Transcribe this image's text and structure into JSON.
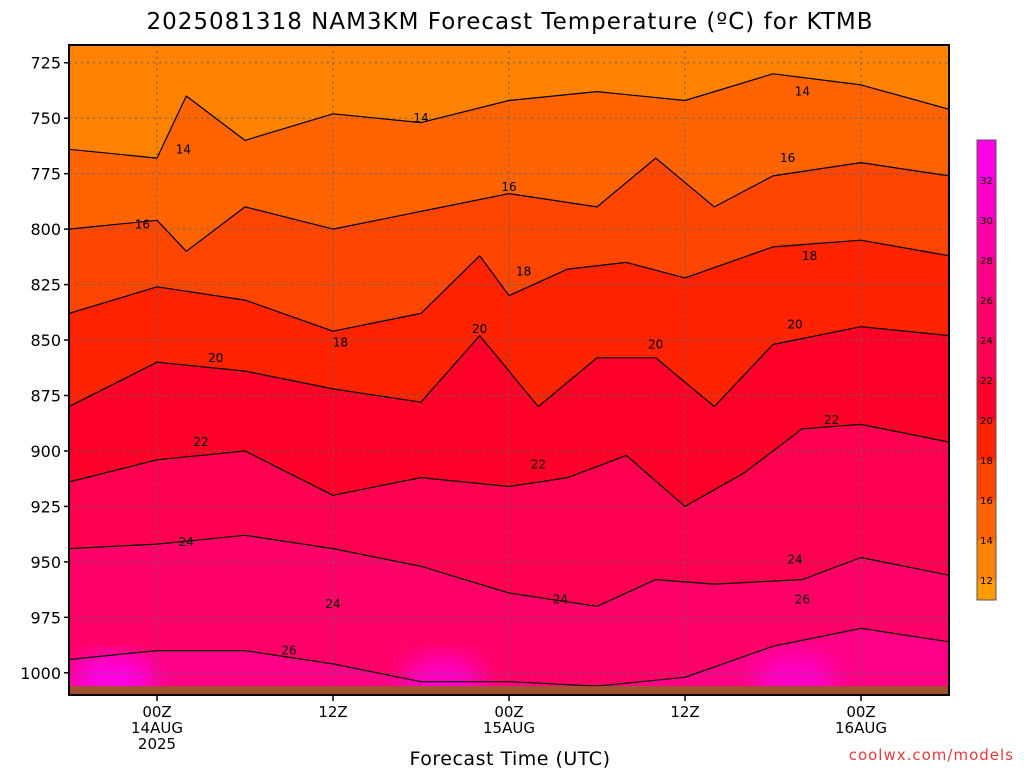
{
  "chart_data": {
    "type": "heatmap",
    "title": "2025081318 NAM3KM Forecast Temperature (ºC) for KTMB",
    "xlabel": "Forecast Time (UTC)",
    "ylabel": "",
    "credit": "coolwx.com/models",
    "x_ticks": [
      {
        "hour": 6,
        "lines": [
          "00Z",
          "14AUG",
          "2025"
        ]
      },
      {
        "hour": 18,
        "lines": [
          "12Z"
        ]
      },
      {
        "hour": 30,
        "lines": [
          "00Z",
          "15AUG"
        ]
      },
      {
        "hour": 42,
        "lines": [
          "12Z"
        ]
      },
      {
        "hour": 54,
        "lines": [
          "00Z",
          "16AUG"
        ]
      }
    ],
    "xlim": [
      0,
      60
    ],
    "y_ticks": [
      725,
      750,
      775,
      800,
      825,
      850,
      875,
      900,
      925,
      950,
      975,
      1000
    ],
    "ylim": [
      717,
      1010
    ],
    "y_scale": "pressure (hPa), inverted",
    "grid": true,
    "colorbar": {
      "ticks": [
        12,
        14,
        16,
        18,
        20,
        22,
        24,
        26,
        28,
        30,
        32
      ],
      "range": [
        11,
        34
      ],
      "colors": {
        "11": "#ff9a00",
        "13": "#ff8200",
        "15": "#ff6400",
        "17": "#ff4600",
        "19": "#ff2300",
        "21": "#ff0028",
        "23": "#ff0050",
        "25": "#ff0069",
        "27": "#ff0087",
        "29": "#ff00a5",
        "31": "#ff00c8",
        "33": "#ff00e6"
      }
    },
    "contour_levels": [
      14,
      16,
      18,
      20,
      22,
      24,
      26
    ],
    "series": [
      {
        "name": "14",
        "values": [
          [
            0,
            764
          ],
          [
            6,
            768
          ],
          [
            8,
            740
          ],
          [
            12,
            760
          ],
          [
            18,
            748
          ],
          [
            24,
            752
          ],
          [
            30,
            742
          ],
          [
            36,
            738
          ],
          [
            42,
            742
          ],
          [
            48,
            730
          ],
          [
            54,
            735
          ],
          [
            60,
            746
          ]
        ]
      },
      {
        "name": "16",
        "values": [
          [
            0,
            800
          ],
          [
            6,
            796
          ],
          [
            8,
            810
          ],
          [
            12,
            790
          ],
          [
            18,
            800
          ],
          [
            24,
            792
          ],
          [
            30,
            784
          ],
          [
            36,
            790
          ],
          [
            40,
            768
          ],
          [
            44,
            790
          ],
          [
            48,
            776
          ],
          [
            54,
            770
          ],
          [
            60,
            776
          ]
        ]
      },
      {
        "name": "18",
        "values": [
          [
            0,
            838
          ],
          [
            6,
            826
          ],
          [
            12,
            832
          ],
          [
            18,
            846
          ],
          [
            24,
            838
          ],
          [
            28,
            812
          ],
          [
            30,
            830
          ],
          [
            34,
            818
          ],
          [
            38,
            815
          ],
          [
            42,
            822
          ],
          [
            48,
            808
          ],
          [
            54,
            805
          ],
          [
            60,
            812
          ]
        ]
      },
      {
        "name": "20",
        "values": [
          [
            0,
            880
          ],
          [
            6,
            860
          ],
          [
            12,
            864
          ],
          [
            18,
            872
          ],
          [
            24,
            878
          ],
          [
            28,
            848
          ],
          [
            32,
            880
          ],
          [
            36,
            858
          ],
          [
            40,
            858
          ],
          [
            44,
            880
          ],
          [
            48,
            852
          ],
          [
            54,
            844
          ],
          [
            60,
            848
          ]
        ]
      },
      {
        "name": "22",
        "values": [
          [
            0,
            914
          ],
          [
            6,
            904
          ],
          [
            12,
            900
          ],
          [
            18,
            920
          ],
          [
            24,
            912
          ],
          [
            30,
            916
          ],
          [
            34,
            912
          ],
          [
            38,
            902
          ],
          [
            42,
            925
          ],
          [
            46,
            910
          ],
          [
            50,
            890
          ],
          [
            54,
            888
          ],
          [
            60,
            896
          ]
        ]
      },
      {
        "name": "24",
        "values": [
          [
            0,
            944
          ],
          [
            6,
            942
          ],
          [
            12,
            938
          ],
          [
            18,
            944
          ],
          [
            24,
            952
          ],
          [
            30,
            964
          ],
          [
            36,
            970
          ],
          [
            40,
            958
          ],
          [
            44,
            960
          ],
          [
            50,
            958
          ],
          [
            54,
            948
          ],
          [
            60,
            956
          ]
        ]
      },
      {
        "name": "26",
        "values": [
          [
            0,
            994
          ],
          [
            6,
            990
          ],
          [
            12,
            990
          ],
          [
            18,
            996
          ],
          [
            24,
            1004
          ],
          [
            30,
            1004
          ],
          [
            36,
            1006
          ],
          [
            42,
            1002
          ],
          [
            48,
            988
          ],
          [
            54,
            980
          ],
          [
            60,
            986
          ]
        ]
      }
    ],
    "contour_labels": [
      {
        "text": "14",
        "hour": 7.8,
        "p": 764
      },
      {
        "text": "14",
        "hour": 24,
        "p": 750
      },
      {
        "text": "14",
        "hour": 50,
        "p": 738
      },
      {
        "text": "16",
        "hour": 5,
        "p": 798
      },
      {
        "text": "16",
        "hour": 30,
        "p": 781
      },
      {
        "text": "16",
        "hour": 49,
        "p": 768
      },
      {
        "text": "18",
        "hour": 18.5,
        "p": 851
      },
      {
        "text": "18",
        "hour": 31,
        "p": 819
      },
      {
        "text": "18",
        "hour": 50.5,
        "p": 812
      },
      {
        "text": "20",
        "hour": 10,
        "p": 858
      },
      {
        "text": "20",
        "hour": 28,
        "p": 845
      },
      {
        "text": "20",
        "hour": 40,
        "p": 852
      },
      {
        "text": "20",
        "hour": 49.5,
        "p": 843
      },
      {
        "text": "22",
        "hour": 9,
        "p": 896
      },
      {
        "text": "22",
        "hour": 32,
        "p": 906
      },
      {
        "text": "22",
        "hour": 52,
        "p": 886
      },
      {
        "text": "24",
        "hour": 8,
        "p": 941
      },
      {
        "text": "24",
        "hour": 18,
        "p": 969
      },
      {
        "text": "24",
        "hour": 33.5,
        "p": 967
      },
      {
        "text": "24",
        "hour": 49.5,
        "p": 949
      },
      {
        "text": "26",
        "hour": 15,
        "p": 990
      },
      {
        "text": "26",
        "hour": 50,
        "p": 967
      }
    ],
    "hot_cores": [
      {
        "hour": 3,
        "p": 1004,
        "value": 33
      },
      {
        "hour": 25.5,
        "p": 1004,
        "value": 31
      },
      {
        "hour": 49.5,
        "p": 1004,
        "value": 31
      }
    ],
    "ground": {
      "color": "#a0522d",
      "top_p": 1006
    }
  }
}
